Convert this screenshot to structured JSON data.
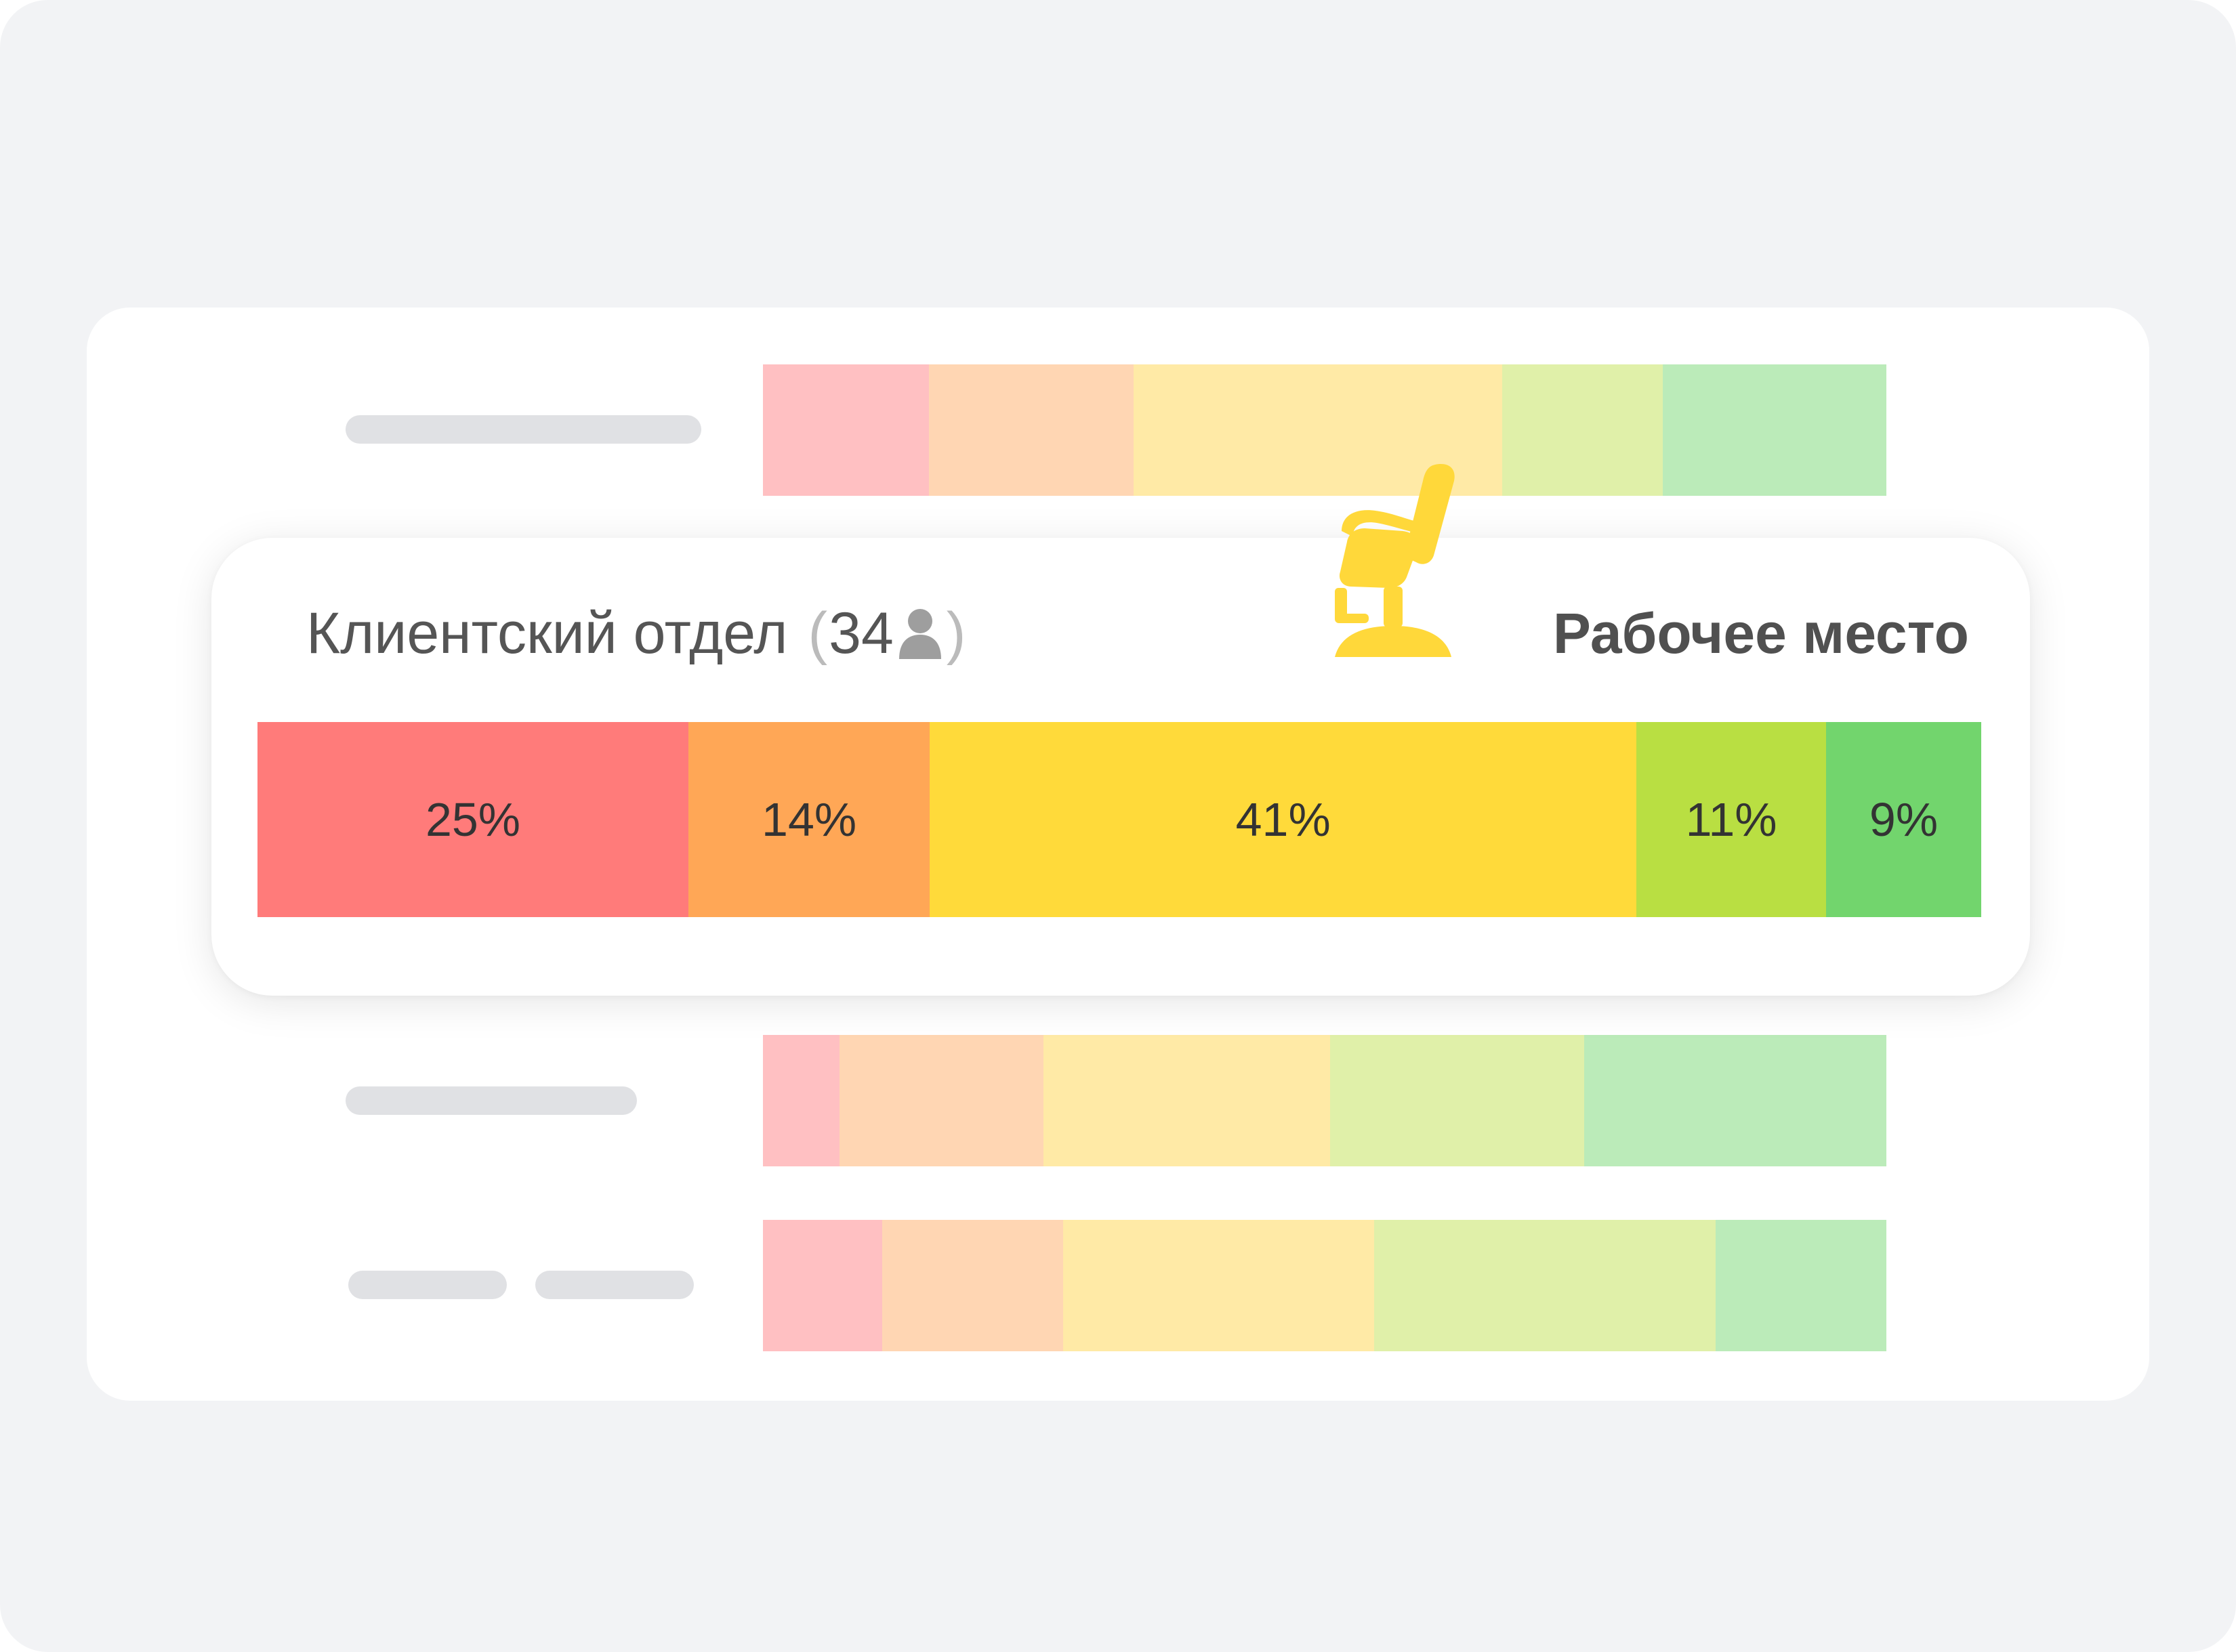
{
  "colors": {
    "red": "#ff7b7a",
    "orange": "#ffa756",
    "yellow": "#ffda3a",
    "lime": "#b9df42",
    "green": "#72d56d",
    "red_light": "#ffc0c2",
    "orange_light": "#ffd6b3",
    "yellow_light": "#ffeaa6",
    "lime_light": "#e0f0a9",
    "green_light": "#bbebb9",
    "chair": "#ffd83a"
  },
  "panel": {
    "department": "Клиентский отдел",
    "paren_open": "(",
    "count": "34",
    "paren_close": ")",
    "person_icon": "person-icon",
    "workplace_icon": "chair-icon",
    "workplace_label": "Рабочее место"
  },
  "chart_data": {
    "type": "bar",
    "categories": [
      "",
      "",
      "",
      "",
      ""
    ],
    "series": [
      {
        "values": [
          25,
          14,
          41,
          11,
          9
        ]
      }
    ],
    "value_labels": [
      "25%",
      "14%",
      "41%",
      "11%",
      "9%"
    ]
  },
  "background_rows": [
    {
      "fractions": [
        0.148,
        0.182,
        0.328,
        0.143,
        0.199
      ]
    },
    {
      "fractions": [
        0.068,
        0.182,
        0.255,
        0.226,
        0.269
      ]
    },
    {
      "fractions": [
        0.106,
        0.161,
        0.277,
        0.304,
        0.152
      ]
    }
  ]
}
